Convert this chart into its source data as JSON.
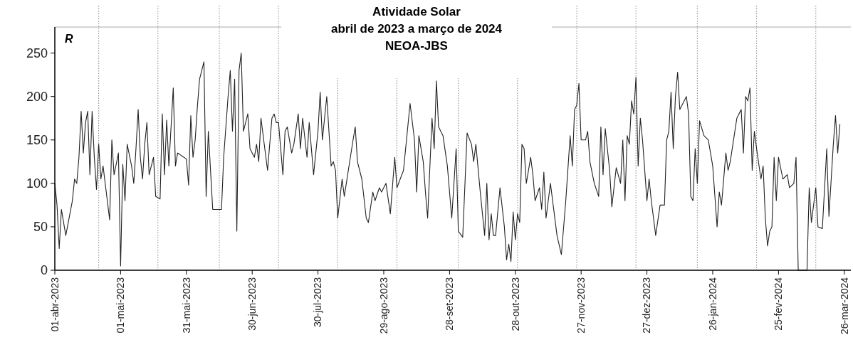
{
  "chart_data": {
    "type": "line",
    "title": "Atividade Solar",
    "subtitle": "abril de 2023 a março de 2024",
    "annotations": [
      "R",
      "NEOA-JBS"
    ],
    "x": [
      "2023-04-01",
      "2023-04-02",
      "2023-04-03",
      "2023-04-04",
      "2023-04-05",
      "2023-04-06",
      "2023-04-09",
      "2023-04-10",
      "2023-04-11",
      "2023-04-12",
      "2023-04-13",
      "2023-04-14",
      "2023-04-15",
      "2023-04-16",
      "2023-04-17",
      "2023-04-18",
      "2023-04-19",
      "2023-04-20",
      "2023-04-21",
      "2023-04-22",
      "2023-04-23",
      "2023-04-26",
      "2023-04-27",
      "2023-04-28",
      "2023-04-29",
      "2023-04-30",
      "2023-05-01",
      "2023-05-02",
      "2023-05-03",
      "2023-05-04",
      "2023-05-06",
      "2023-05-07",
      "2023-05-08",
      "2023-05-09",
      "2023-05-10",
      "2023-05-11",
      "2023-05-12",
      "2023-05-13",
      "2023-05-14",
      "2023-05-16",
      "2023-05-17",
      "2023-05-19",
      "2023-05-20",
      "2023-05-21",
      "2023-05-22",
      "2023-05-23",
      "2023-05-24",
      "2023-05-25",
      "2023-05-26",
      "2023-05-27",
      "2023-05-31",
      "2023-06-01",
      "2023-06-02",
      "2023-06-03",
      "2023-06-04",
      "2023-06-05",
      "2023-06-06",
      "2023-06-08",
      "2023-06-09",
      "2023-06-10",
      "2023-06-12",
      "2023-06-16",
      "2023-06-17",
      "2023-06-19",
      "2023-06-20",
      "2023-06-21",
      "2023-06-22",
      "2023-06-23",
      "2023-06-24",
      "2023-06-25",
      "2023-06-26",
      "2023-06-28",
      "2023-06-29",
      "2023-07-01",
      "2023-07-02",
      "2023-07-03",
      "2023-07-04",
      "2023-07-07",
      "2023-07-09",
      "2023-07-10",
      "2023-07-11",
      "2023-07-12",
      "2023-07-14",
      "2023-07-15",
      "2023-07-16",
      "2023-07-18",
      "2023-07-19",
      "2023-07-21",
      "2023-07-22",
      "2023-07-23",
      "2023-07-25",
      "2023-07-26",
      "2023-07-28",
      "2023-07-30",
      "2023-07-31",
      "2023-08-01",
      "2023-08-03",
      "2023-08-05",
      "2023-08-06",
      "2023-08-07",
      "2023-08-08",
      "2023-08-10",
      "2023-08-11",
      "2023-08-15",
      "2023-08-16",
      "2023-08-17",
      "2023-08-19",
      "2023-08-21",
      "2023-08-22",
      "2023-08-24",
      "2023-08-25",
      "2023-08-27",
      "2023-08-28",
      "2023-08-30",
      "2023-09-01",
      "2023-09-03",
      "2023-09-04",
      "2023-09-07",
      "2023-09-10",
      "2023-09-12",
      "2023-09-13",
      "2023-09-14",
      "2023-09-16",
      "2023-09-17",
      "2023-09-18",
      "2023-09-20",
      "2023-09-21",
      "2023-09-22",
      "2023-09-23",
      "2023-09-25",
      "2023-09-27",
      "2023-09-29",
      "2023-10-01",
      "2023-10-02",
      "2023-10-04",
      "2023-10-06",
      "2023-10-08",
      "2023-10-09",
      "2023-10-10",
      "2023-10-12",
      "2023-10-14",
      "2023-10-15",
      "2023-10-16",
      "2023-10-17",
      "2023-10-18",
      "2023-10-19",
      "2023-10-21",
      "2023-10-23",
      "2023-10-24",
      "2023-10-25",
      "2023-10-26",
      "2023-10-27",
      "2023-10-28",
      "2023-10-29",
      "2023-10-30",
      "2023-10-31",
      "2023-11-01",
      "2023-11-02",
      "2023-11-04",
      "2023-11-05",
      "2023-11-06",
      "2023-11-08",
      "2023-11-09",
      "2023-11-10",
      "2023-11-11",
      "2023-11-13",
      "2023-11-14",
      "2023-11-16",
      "2023-11-18",
      "2023-11-20",
      "2023-11-22",
      "2023-11-23",
      "2023-11-24",
      "2023-11-25",
      "2023-11-26",
      "2023-11-27",
      "2023-11-29",
      "2023-11-30",
      "2023-12-01",
      "2023-12-03",
      "2023-12-05",
      "2023-12-06",
      "2023-12-07",
      "2023-12-08",
      "2023-12-10",
      "2023-12-11",
      "2023-12-13",
      "2023-12-15",
      "2023-12-16",
      "2023-12-17",
      "2023-12-18",
      "2023-12-19",
      "2023-12-20",
      "2023-12-21",
      "2023-12-22",
      "2023-12-23",
      "2023-12-24",
      "2023-12-25",
      "2023-12-27",
      "2023-12-28",
      "2023-12-29",
      "2023-12-31",
      "2024-01-02",
      "2024-01-04",
      "2024-01-05",
      "2024-01-06",
      "2024-01-07",
      "2024-01-08",
      "2024-01-09",
      "2024-01-10",
      "2024-01-11",
      "2024-01-14",
      "2024-01-15",
      "2024-01-16",
      "2024-01-17",
      "2024-01-18",
      "2024-01-19",
      "2024-01-20",
      "2024-01-22",
      "2024-01-24",
      "2024-01-26",
      "2024-01-28",
      "2024-01-29",
      "2024-01-30",
      "2024-02-01",
      "2024-02-02",
      "2024-02-03",
      "2024-02-06",
      "2024-02-08",
      "2024-02-09",
      "2024-02-10",
      "2024-02-11",
      "2024-02-12",
      "2024-02-13",
      "2024-02-14",
      "2024-02-15",
      "2024-02-17",
      "2024-02-18",
      "2024-02-19",
      "2024-02-20",
      "2024-02-21",
      "2024-02-22",
      "2024-02-23",
      "2024-02-24",
      "2024-02-25",
      "2024-02-27",
      "2024-02-29",
      "2024-03-01",
      "2024-03-03",
      "2024-03-04",
      "2024-03-05",
      "2024-03-09",
      "2024-03-10",
      "2024-03-11",
      "2024-03-13",
      "2024-03-14",
      "2024-03-16",
      "2024-03-18",
      "2024-03-19",
      "2024-03-21",
      "2024-03-22",
      "2024-03-23",
      "2024-03-24"
    ],
    "values": [
      100,
      75,
      25,
      70,
      55,
      40,
      80,
      105,
      100,
      130,
      183,
      135,
      170,
      183,
      110,
      183,
      130,
      93,
      145,
      105,
      120,
      58,
      150,
      110,
      122,
      135,
      5,
      122,
      80,
      145,
      120,
      100,
      140,
      185,
      130,
      105,
      145,
      170,
      110,
      130,
      85,
      82,
      180,
      110,
      173,
      120,
      165,
      210,
      120,
      135,
      128,
      98,
      178,
      130,
      150,
      188,
      220,
      240,
      85,
      160,
      70,
      70,
      130,
      200,
      230,
      160,
      220,
      45,
      230,
      250,
      160,
      180,
      140,
      130,
      145,
      125,
      175,
      115,
      175,
      180,
      170,
      170,
      110,
      160,
      165,
      135,
      145,
      180,
      140,
      175,
      130,
      170,
      110,
      160,
      205,
      150,
      200,
      120,
      125,
      115,
      60,
      105,
      85,
      150,
      165,
      125,
      105,
      60,
      55,
      90,
      80,
      95,
      90,
      100,
      65,
      130,
      95,
      115,
      192,
      150,
      90,
      155,
      125,
      90,
      60,
      175,
      140,
      218,
      165,
      155,
      120,
      60,
      140,
      45,
      38,
      158,
      145,
      125,
      145,
      90,
      40,
      100,
      35,
      65,
      40,
      40,
      95,
      50,
      12,
      30,
      10,
      67,
      35,
      65,
      55,
      145,
      140,
      100,
      130,
      110,
      80,
      95,
      70,
      113,
      60,
      100,
      80,
      40,
      18,
      80,
      155,
      120,
      185,
      190,
      215,
      150,
      150,
      160,
      125,
      100,
      85,
      165,
      110,
      163,
      115,
      73,
      118,
      100,
      150,
      80,
      155,
      145,
      195,
      180,
      222,
      120,
      175,
      150,
      80,
      105,
      80,
      40,
      75,
      75,
      150,
      160,
      205,
      140,
      200,
      228,
      185,
      200,
      180,
      85,
      80,
      140,
      100,
      172,
      155,
      150,
      120,
      50,
      90,
      75,
      135,
      115,
      125,
      175,
      185,
      135,
      200,
      195,
      210,
      115,
      160,
      140,
      105,
      120,
      60,
      28,
      45,
      50,
      130,
      80,
      130,
      105,
      110,
      95,
      100,
      130,
      0,
      0,
      95,
      55,
      95,
      50,
      48,
      140,
      62,
      145,
      178,
      135,
      168
    ],
    "color": "#222222",
    "xlim": [
      "2023-04-01",
      "2024-03-29"
    ],
    "xticks": [
      {
        "value": "2023-04-01",
        "label": "01-abr-2023"
      },
      {
        "value": "2023-05-01",
        "label": "01-mai-2023"
      },
      {
        "value": "2023-05-31",
        "label": "31-mai-2023"
      },
      {
        "value": "2023-06-30",
        "label": "30-jun-2023"
      },
      {
        "value": "2023-07-30",
        "label": "30-jul-2023"
      },
      {
        "value": "2023-08-29",
        "label": "29-ago-2023"
      },
      {
        "value": "2023-09-28",
        "label": "28-set-2023"
      },
      {
        "value": "2023-10-28",
        "label": "28-out-2023"
      },
      {
        "value": "2023-11-27",
        "label": "27-nov-2023"
      },
      {
        "value": "2023-12-27",
        "label": "27-dez-2023"
      },
      {
        "value": "2024-01-26",
        "label": "26-jan-2024"
      },
      {
        "value": "2024-02-25",
        "label": "25-fev-2024"
      },
      {
        "value": "2024-03-26",
        "label": "26-mar-2024"
      }
    ],
    "ylim": [
      0,
      280
    ],
    "yticks": [
      0,
      50,
      100,
      150,
      200,
      250
    ],
    "ref_lines": [
      {
        "axis": "x",
        "value": "2023-04-21",
        "color": "#999999",
        "line_style": "dotted"
      },
      {
        "axis": "x",
        "value": "2023-05-18",
        "color": "#999999",
        "line_style": "dotted"
      },
      {
        "axis": "x",
        "value": "2023-06-15",
        "color": "#999999",
        "line_style": "dotted"
      },
      {
        "axis": "x",
        "value": "2023-07-12",
        "color": "#999999",
        "line_style": "dotted"
      },
      {
        "axis": "x",
        "value": "2023-08-08",
        "color": "#999999",
        "line_style": "dotted"
      },
      {
        "axis": "x",
        "value": "2023-09-04",
        "color": "#999999",
        "line_style": "dotted"
      },
      {
        "axis": "x",
        "value": "2023-10-02",
        "color": "#999999",
        "line_style": "dotted"
      },
      {
        "axis": "x",
        "value": "2023-10-29",
        "color": "#999999",
        "line_style": "dotted"
      },
      {
        "axis": "x",
        "value": "2023-11-25",
        "color": "#999999",
        "line_style": "dotted"
      },
      {
        "axis": "x",
        "value": "2023-12-22",
        "color": "#999999",
        "line_style": "dotted"
      },
      {
        "axis": "x",
        "value": "2024-01-19",
        "color": "#999999",
        "line_style": "dotted"
      },
      {
        "axis": "x",
        "value": "2024-02-15",
        "color": "#999999",
        "line_style": "dotted"
      },
      {
        "axis": "x",
        "value": "2024-03-13",
        "color": "#999999",
        "line_style": "dotted"
      }
    ],
    "line_style": "solid"
  }
}
